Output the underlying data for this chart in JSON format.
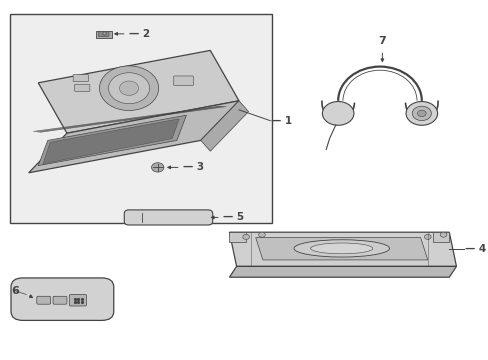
{
  "bg_color": "#ffffff",
  "box1_color": "#eeeeee",
  "line_color": "#444444",
  "lw_main": 0.9,
  "lw_thin": 0.5
}
